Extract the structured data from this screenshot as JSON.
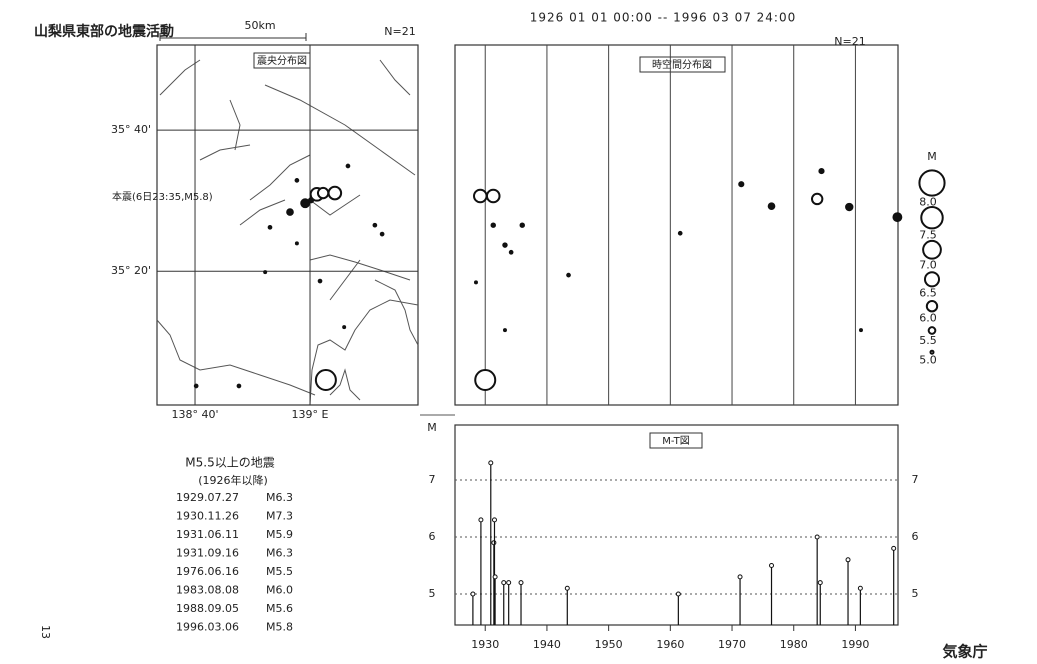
{
  "header": {
    "title": "山梨県東部の地震活動",
    "period": "1926 01 01 00:00 -- 1996 03 07 24:00"
  },
  "list": {
    "title": "M5.5以上の地震",
    "subtitle": "(1926年以降)",
    "rows": [
      [
        "1929.07.27",
        "M6.3"
      ],
      [
        "1930.11.26",
        "M7.3"
      ],
      [
        "1931.06.11",
        "M5.9"
      ],
      [
        "1931.09.16",
        "M6.3"
      ],
      [
        "1976.06.16",
        "M5.5"
      ],
      [
        "1983.08.08",
        "M6.0"
      ],
      [
        "1988.09.05",
        "M5.6"
      ],
      [
        "1996.03.06",
        "M5.8"
      ]
    ]
  },
  "page_number": "13",
  "footer": "気象庁",
  "chart_data": [
    {
      "type": "map",
      "title": "震央分布図",
      "count_label": "N=21",
      "scale_label": "50km",
      "annotation": "本震(6日23:35,M5.8)",
      "xlim": [
        138.5565,
        139.313
      ],
      "ylim": [
        35.017,
        35.868
      ],
      "xticks": [
        {
          "value": 138.6667,
          "label": "138° 40'"
        },
        {
          "value": 139,
          "label": "139° E"
        }
      ],
      "yticks": [
        {
          "value": 35.6667,
          "label": "35° 40'"
        },
        {
          "value": 35.3333,
          "label": "35° 20'"
        }
      ],
      "grid": true,
      "color": "#111111",
      "x": [
        139.11,
        138.962,
        138.942,
        138.986,
        139.003,
        139.02,
        139.038,
        139.072,
        138.884,
        138.962,
        139.188,
        139.209,
        138.87,
        139.029,
        139.099,
        139.046,
        138.67,
        138.794
      ],
      "y": [
        35.582,
        35.548,
        35.473,
        35.494,
        35.501,
        35.515,
        35.518,
        35.518,
        35.437,
        35.399,
        35.442,
        35.421,
        35.331,
        35.31,
        35.201,
        35.076,
        35.062,
        35.062
      ],
      "sizes": [
        5.1,
        5.1,
        5.5,
        5.8,
        5.3,
        6.3,
        6.0,
        6.3,
        5.1,
        5.0,
        5.1,
        5.1,
        5.0,
        5.1,
        5.0,
        7.3,
        5.1,
        5.1
      ]
    },
    {
      "type": "spacetime",
      "title": "時空間分布図",
      "count_label": "N=21",
      "legend_title": "M",
      "size_legend": [
        {
          "value": 8,
          "label": "8.0"
        },
        {
          "value": 7.5,
          "label": "7.5"
        },
        {
          "value": 7,
          "label": "7.0"
        },
        {
          "value": 6.5,
          "label": "6.5"
        },
        {
          "value": 6,
          "label": "6.0"
        },
        {
          "value": 5.5,
          "label": "5.5"
        },
        {
          "value": 5,
          "label": "5.0"
        }
      ],
      "xlim": [
        1925.1,
        1996.9
      ],
      "ylim": [
        35.017,
        35.868
      ],
      "color": "#111111",
      "x": [
        1928.5,
        1929.2,
        1930.0,
        1931.3,
        1931.3,
        1933.2,
        1934.2,
        1933.2,
        1936.0,
        1943.5,
        1961.6,
        1971.5,
        1976.4,
        1983.8,
        1984.5,
        1989.0,
        1990.9,
        1996.8
      ],
      "y": [
        35.307,
        35.511,
        35.076,
        35.511,
        35.442,
        35.395,
        35.378,
        35.194,
        35.442,
        35.324,
        35.423,
        35.539,
        35.487,
        35.504,
        35.57,
        35.485,
        35.194,
        35.461
      ],
      "sizes": [
        5.0,
        6.3,
        7.3,
        6.3,
        5.2,
        5.2,
        5.1,
        5.0,
        5.2,
        5.1,
        5.1,
        5.3,
        5.5,
        6.0,
        5.3,
        5.6,
        5.0,
        5.8
      ]
    },
    {
      "type": "stem",
      "title": "M-T図",
      "y_label": "M",
      "xlim": [
        1925.1,
        1996.9
      ],
      "ylim": [
        4.456,
        7.965
      ],
      "xticks": [
        1930,
        1940,
        1950,
        1960,
        1970,
        1980,
        1990
      ],
      "yticks": [
        5,
        6,
        7
      ],
      "grid": true,
      "color": "#111111",
      "x": [
        1928.0,
        1929.3,
        1930.9,
        1931.4,
        1931.5,
        1931.6,
        1933.0,
        1933.8,
        1935.8,
        1943.3,
        1961.3,
        1971.3,
        1976.4,
        1983.8,
        1984.3,
        1988.8,
        1990.8,
        1996.2
      ],
      "values": [
        5.0,
        6.3,
        7.3,
        5.9,
        6.3,
        5.3,
        5.2,
        5.2,
        5.2,
        5.1,
        5.0,
        5.3,
        5.5,
        6.0,
        5.2,
        5.6,
        5.1,
        5.8
      ]
    }
  ]
}
